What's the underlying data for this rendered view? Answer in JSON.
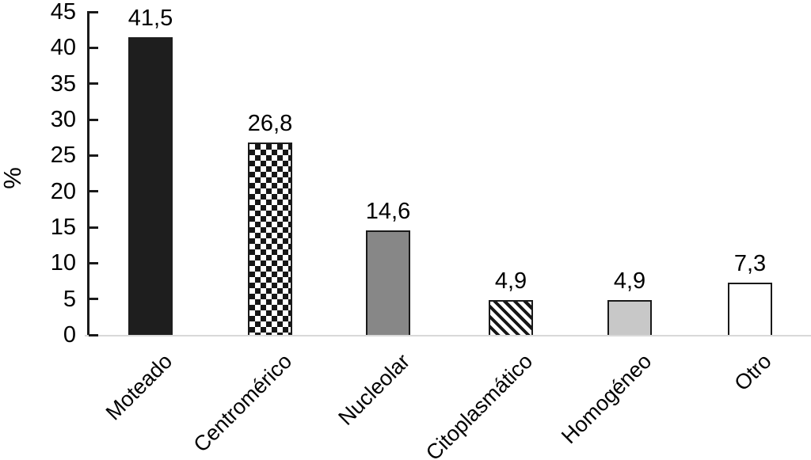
{
  "chart_data": {
    "type": "bar",
    "title": "",
    "categories": [
      "Moteado",
      "Centromérico",
      "Nucleolar",
      "Citoplasmático",
      "Homogéneo",
      "Otro"
    ],
    "values": [
      41.5,
      26.8,
      14.6,
      4.9,
      4.9,
      7.3
    ],
    "value_labels": [
      "41,5",
      "26,8",
      "14,6",
      "4,9",
      "4,9",
      "7,3"
    ],
    "bar_patterns": [
      "solid-black",
      "checkerboard",
      "solid-gray",
      "diagonal-stripes",
      "solid-lightgray",
      "white-outline"
    ],
    "xlabel": "",
    "ylabel": "%",
    "ylim": [
      0,
      45
    ],
    "yticks": [
      0,
      5,
      10,
      15,
      20,
      25,
      30,
      35,
      40,
      45
    ],
    "grid": false,
    "legend_position": "none",
    "decimal_separator": ",",
    "colors": {
      "bar_black": "#1e1e1e",
      "bar_gray": "#878787",
      "bar_lightgray": "#c8c8c8",
      "pattern_ink": "#161616",
      "axis": "#1a1a1a",
      "baseline": "#d9d9d9",
      "text": "#000000",
      "background": "#ffffff"
    }
  }
}
